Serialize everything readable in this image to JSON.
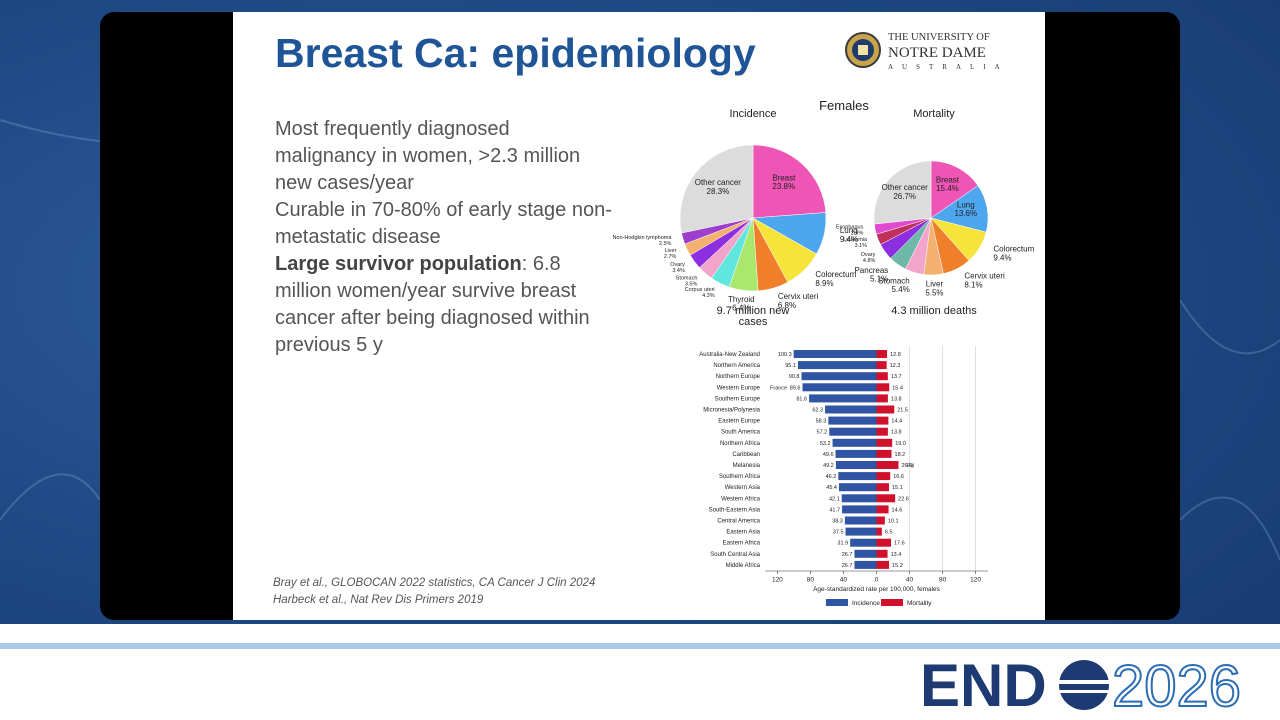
{
  "slide": {
    "title": "Breast Ca: epidemiology",
    "bullets": [
      {
        "text": "Most frequently diagnosed malignancy in women, >2.3 million new cases/year"
      },
      {
        "text": "Curable in 70-80% of early stage non-metastatic disease"
      },
      {
        "bold": "Large survivor population",
        "text": ": 6.8 million women/year survive breast cancer after being diagnosed within previous 5 y"
      }
    ],
    "references": [
      "Bray et al., GLOBOCAN 2022 statistics, CA Cancer J Clin 2024",
      "Harbeck et al., Nat Rev Dis Primers 2019"
    ],
    "figure_title": "Females"
  },
  "logo": {
    "line1": "THE UNIVERSITY OF",
    "line2": "NOTRE DAME",
    "line3": "AUSTRALIA"
  },
  "event_logo": {
    "left": "END",
    "right": "2026"
  },
  "chart_data": [
    {
      "type": "pie",
      "title": "Incidence",
      "caption": "9.7 million new cases",
      "categories": [
        "Breast",
        "Lung",
        "Colorectum",
        "Cervix uteri",
        "Thyroid",
        "Corpus uteri",
        "Stomach",
        "Ovary",
        "Liver",
        "Non-Hodgkin lymphoma",
        "Other cancer"
      ],
      "values": [
        23.8,
        9.4,
        8.9,
        6.8,
        6.4,
        4.3,
        3.5,
        3.4,
        2.7,
        2.5,
        28.3
      ],
      "value_labels": [
        "23.8%",
        "9.4%",
        "8.9%",
        "6.8%",
        "6.4%",
        "4.3%",
        "3.5%",
        "3.4%",
        "2.7%",
        "2.5%",
        "28.3%"
      ],
      "colors": [
        "#ee55b4",
        "#4ea6ef",
        "#f6e43a",
        "#ef7f2b",
        "#a9e86c",
        "#5fe6df",
        "#f2a4cb",
        "#8b2fe0",
        "#f4b06f",
        "#9c3fcf",
        "#dcdcdc"
      ]
    },
    {
      "type": "pie",
      "title": "Mortality",
      "caption": "4.3 million deaths",
      "categories": [
        "Breast",
        "Lung",
        "Colorectum",
        "Cervix uteri",
        "Liver",
        "Stomach",
        "Pancreas",
        "Ovary",
        "Leukemia",
        "Esophagus",
        "Other cancer"
      ],
      "values": [
        15.4,
        13.6,
        9.4,
        8.1,
        5.5,
        5.4,
        5.1,
        4.8,
        3.1,
        2.9,
        26.7
      ],
      "value_labels": [
        "15.4%",
        "13.6%",
        "9.4%",
        "8.1%",
        "5.5%",
        "5.4%",
        "5.1%",
        "4.8%",
        "3.1%",
        "2.9%",
        "26.7%"
      ],
      "colors": [
        "#ee55b4",
        "#4ea6ef",
        "#f6e43a",
        "#ef7f2b",
        "#f4b06f",
        "#f2a4cb",
        "#6fb8a8",
        "#8b2fe0",
        "#c0305a",
        "#e04ad0",
        "#dcdcdc"
      ]
    },
    {
      "type": "bar",
      "orientation": "horizontal",
      "categories": [
        "Australia-New Zealand",
        "Northern America",
        "Northern Europe",
        "Western Europe",
        "Southern Europe",
        "Micronesia/Polynesia",
        "Eastern Europe",
        "South America",
        "Northern Africa",
        "Caribbean",
        "Melanesia",
        "Southern Africa",
        "Western Asia",
        "Western Africa",
        "South-Eastern Asia",
        "Central America",
        "Eastern Asia",
        "Eastern Africa",
        "South Central Asia",
        "Middle Africa"
      ],
      "series": [
        {
          "name": "Incidence",
          "color": "#2f55a4",
          "values": [
            100.3,
            95.1,
            90.8,
            89.6,
            81.6,
            62.3,
            58.3,
            57.2,
            53.2,
            49.6,
            49.2,
            46.2,
            45.4,
            42.1,
            41.7,
            38.3,
            37.5,
            31.9,
            26.7,
            26.7
          ]
        },
        {
          "name": "Mortality",
          "color": "#d0112b",
          "values": [
            12.8,
            12.3,
            13.7,
            15.4,
            13.8,
            21.5,
            14.4,
            13.8,
            19.0,
            18.2,
            26.6,
            16.6,
            15.1,
            22.6,
            14.6,
            10.1,
            6.5,
            17.6,
            13.4,
            15.2
          ],
          "value_labels": [
            "12.8",
            "12.3",
            "13.7",
            "15.4",
            "13.8",
            "21.5",
            "14.4",
            "13.8",
            "19.0",
            "18.2",
            "26.6",
            "16.6",
            "15.1",
            "22.6",
            "14.6",
            "10.1",
            "6.5",
            "17.6",
            "13.4",
            "15.2"
          ]
        }
      ],
      "xlim": [
        -135,
        135
      ],
      "xticks": [
        {
          "value": -120,
          "label": "120"
        },
        {
          "value": -80,
          "label": "80"
        },
        {
          "value": -40,
          "label": "40"
        },
        0,
        40,
        80,
        120
      ],
      "grid": true,
      "xlabel": "Age-standardized rate per 100,000, females",
      "annotations": [
        "France",
        "Fiji"
      ]
    }
  ]
}
